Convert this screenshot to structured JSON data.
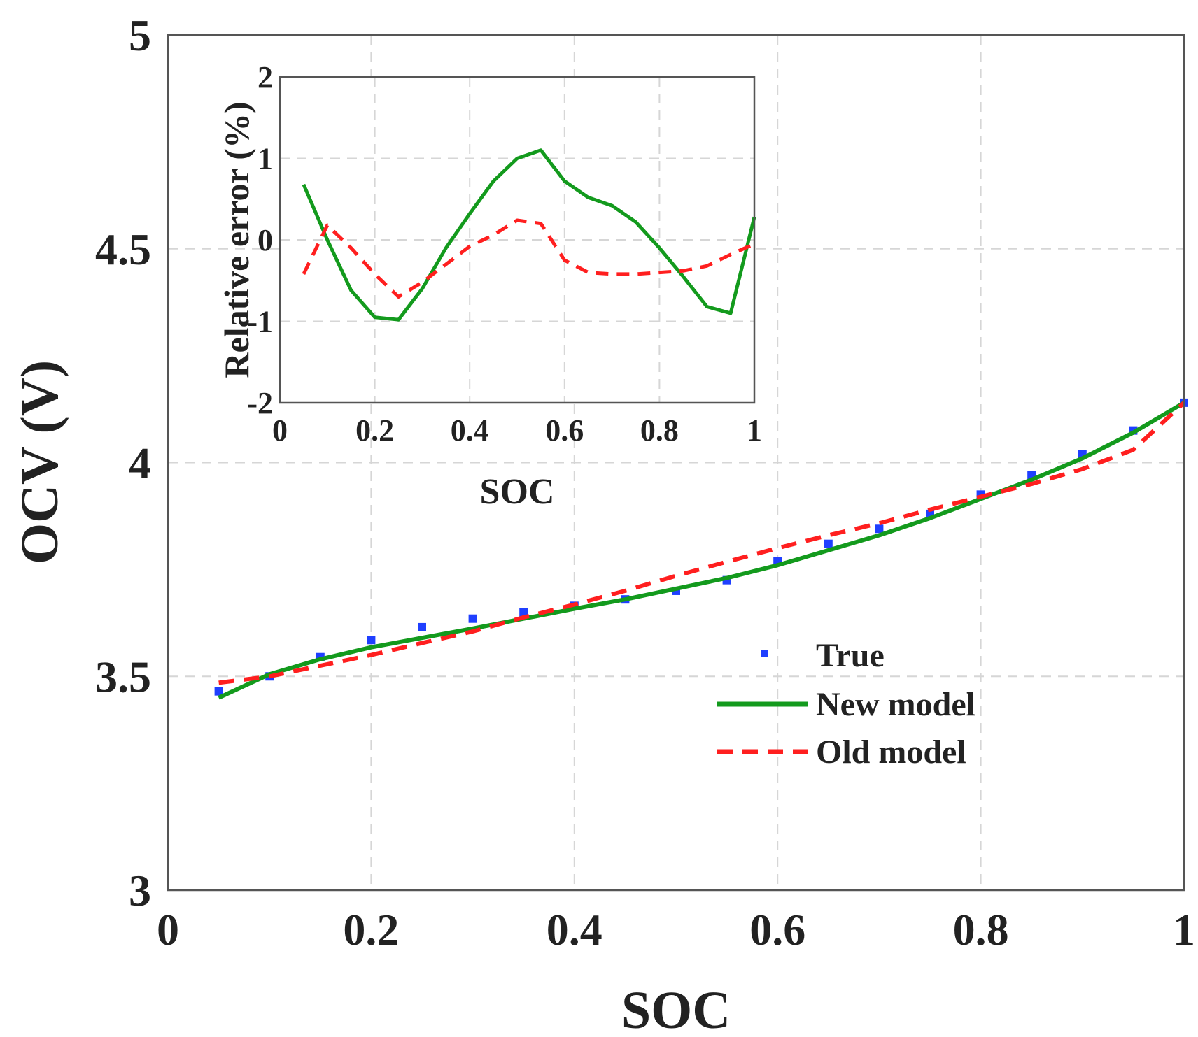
{
  "chart_data": [
    {
      "id": "main",
      "type": "line",
      "title": "",
      "xlabel": "SOC",
      "ylabel": "OCV (V)",
      "xlim": [
        0,
        1
      ],
      "ylim": [
        3,
        5
      ],
      "xticks": [
        0,
        0.2,
        0.4,
        0.6,
        0.8,
        1
      ],
      "xtick_labels": [
        "0",
        "0.2",
        "0.4",
        "0.6",
        "0.8",
        "1"
      ],
      "yticks": [
        3,
        3.5,
        4,
        4.5,
        5
      ],
      "ytick_labels": [
        "3",
        "3.5",
        "4",
        "4.5",
        "5"
      ],
      "grid": true,
      "legend_position": "center-right",
      "series": [
        {
          "name": "True",
          "style": "markers",
          "color": "#1f3fff",
          "x": [
            0.05,
            0.1,
            0.15,
            0.2,
            0.25,
            0.3,
            0.35,
            0.4,
            0.45,
            0.5,
            0.55,
            0.6,
            0.65,
            0.7,
            0.75,
            0.8,
            0.85,
            0.9,
            0.95,
            1.0
          ],
          "y": [
            3.465,
            3.5,
            3.545,
            3.585,
            3.615,
            3.635,
            3.65,
            3.665,
            3.68,
            3.7,
            3.725,
            3.77,
            3.81,
            3.845,
            3.88,
            3.925,
            3.97,
            4.02,
            4.075,
            4.14
          ]
        },
        {
          "name": "New model",
          "style": "solid",
          "color": "#139a1d",
          "x": [
            0.05,
            0.1,
            0.15,
            0.2,
            0.25,
            0.3,
            0.35,
            0.4,
            0.45,
            0.5,
            0.55,
            0.6,
            0.65,
            0.7,
            0.75,
            0.8,
            0.85,
            0.9,
            0.95,
            1.0
          ],
          "y": [
            3.45,
            3.505,
            3.54,
            3.568,
            3.59,
            3.612,
            3.635,
            3.658,
            3.68,
            3.705,
            3.73,
            3.76,
            3.795,
            3.83,
            3.87,
            3.915,
            3.96,
            4.01,
            4.07,
            4.14
          ]
        },
        {
          "name": "Old model",
          "style": "dashed",
          "color": "#ff1f1f",
          "x": [
            0.05,
            0.1,
            0.15,
            0.2,
            0.25,
            0.3,
            0.35,
            0.4,
            0.45,
            0.5,
            0.55,
            0.6,
            0.65,
            0.7,
            0.75,
            0.8,
            0.85,
            0.9,
            0.95,
            1.0
          ],
          "y": [
            3.485,
            3.5,
            3.525,
            3.55,
            3.578,
            3.605,
            3.638,
            3.668,
            3.7,
            3.735,
            3.768,
            3.8,
            3.83,
            3.858,
            3.89,
            3.92,
            3.95,
            3.985,
            4.03,
            4.14
          ]
        }
      ]
    },
    {
      "id": "inset",
      "type": "line",
      "title": "",
      "xlabel": "SOC",
      "ylabel": "Relative error (%)",
      "xlim": [
        0,
        1
      ],
      "ylim": [
        -2,
        2
      ],
      "xticks": [
        0,
        0.2,
        0.4,
        0.6,
        0.8,
        1
      ],
      "xtick_labels": [
        "0",
        "0.2",
        "0.4",
        "0.6",
        "0.8",
        "1"
      ],
      "yticks": [
        -2,
        -1,
        0,
        1,
        2
      ],
      "ytick_labels": [
        "-2",
        "-1",
        "0",
        "1",
        "2"
      ],
      "grid": true,
      "series": [
        {
          "name": "New model",
          "style": "solid",
          "color": "#139a1d",
          "x": [
            0.05,
            0.1,
            0.15,
            0.2,
            0.25,
            0.3,
            0.35,
            0.4,
            0.45,
            0.5,
            0.55,
            0.6,
            0.65,
            0.7,
            0.75,
            0.8,
            0.85,
            0.9,
            0.95,
            1.0
          ],
          "y": [
            0.68,
            0.0,
            -0.62,
            -0.95,
            -0.98,
            -0.6,
            -0.1,
            0.32,
            0.72,
            1.0,
            1.1,
            0.72,
            0.52,
            0.42,
            0.22,
            -0.1,
            -0.45,
            -0.82,
            -0.9,
            0.28
          ]
        },
        {
          "name": "Old model",
          "style": "dashed",
          "color": "#ff1f1f",
          "x": [
            0.05,
            0.1,
            0.15,
            0.2,
            0.25,
            0.3,
            0.35,
            0.4,
            0.45,
            0.5,
            0.55,
            0.6,
            0.65,
            0.7,
            0.75,
            0.8,
            0.85,
            0.9,
            0.95,
            1.0
          ],
          "y": [
            -0.42,
            0.18,
            -0.1,
            -0.42,
            -0.7,
            -0.52,
            -0.3,
            -0.08,
            0.06,
            0.24,
            0.2,
            -0.25,
            -0.4,
            -0.42,
            -0.42,
            -0.4,
            -0.38,
            -0.32,
            -0.18,
            -0.05
          ]
        }
      ]
    }
  ]
}
